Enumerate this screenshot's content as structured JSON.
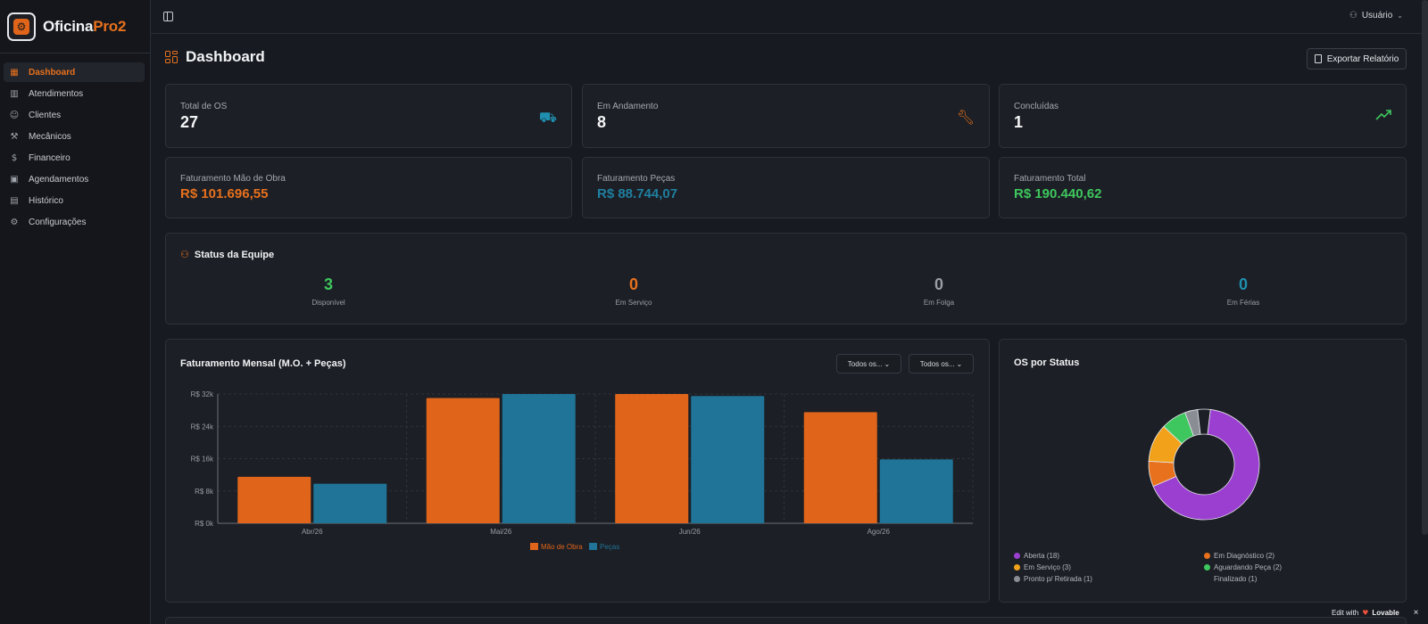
{
  "app": {
    "brand_main": "Oficina",
    "brand_accent": "Pro2"
  },
  "sidebar": {
    "items": [
      {
        "label": "Dashboard",
        "icon": "grid-icon",
        "glyph": "▦",
        "active": true
      },
      {
        "label": "Atendimentos",
        "icon": "book-icon",
        "glyph": "▥"
      },
      {
        "label": "Clientes",
        "icon": "users-icon",
        "glyph": "☺"
      },
      {
        "label": "Mecânicos",
        "icon": "wrench-icon",
        "glyph": "⚒"
      },
      {
        "label": "Financeiro",
        "icon": "dollar-icon",
        "glyph": "$"
      },
      {
        "label": "Agendamentos",
        "icon": "calendar-icon",
        "glyph": "▣"
      },
      {
        "label": "Histórico",
        "icon": "archive-icon",
        "glyph": "▤"
      },
      {
        "label": "Configurações",
        "icon": "gear-icon",
        "glyph": "⚙"
      }
    ]
  },
  "topbar": {
    "user_label": "Usuário"
  },
  "page": {
    "title": "Dashboard",
    "export_label": "Exportar Relatório"
  },
  "stats": [
    {
      "label": "Total de OS",
      "value": "27",
      "icon": "car-icon",
      "color": "#1f8fb0"
    },
    {
      "label": "Em Andamento",
      "value": "8",
      "icon": "wrench-icon",
      "color": "#e8711d"
    },
    {
      "label": "Concluídas",
      "value": "1",
      "icon": "trending-up-icon",
      "color": "#3ec75e"
    }
  ],
  "revenue": [
    {
      "label": "Faturamento Mão de Obra",
      "value": "R$ 101.696,55",
      "color": "#e8711d"
    },
    {
      "label": "Faturamento Peças",
      "value": "R$ 88.744,07",
      "color": "#1f7fa0"
    },
    {
      "label": "Faturamento Total",
      "value": "R$ 190.440,62",
      "color": "#3ec75e"
    }
  ],
  "team": {
    "title": "Status da Equipe",
    "stats": [
      {
        "value": "3",
        "label": "Disponível",
        "color": "#3ec75e"
      },
      {
        "value": "0",
        "label": "Em Serviço",
        "color": "#e8711d"
      },
      {
        "value": "0",
        "label": "Em Folga",
        "color": "#9a9ea6"
      },
      {
        "value": "0",
        "label": "Em Férias",
        "color": "#1f8fb0"
      }
    ]
  },
  "monthly": {
    "title": "Faturamento Mensal (M.O. + Peças)",
    "filter1": "Todos os...",
    "filter2": "Todos os..."
  },
  "status_panel": {
    "title": "OS por Status"
  },
  "chart_data": [
    {
      "type": "bar",
      "title": "Faturamento Mensal (M.O. + Peças)",
      "categories": [
        "Abr/26",
        "Mai/26",
        "Jun/26",
        "Ago/26"
      ],
      "series": [
        {
          "name": "Mão de Obra",
          "color": "#e0651a",
          "values": [
            11500,
            31000,
            32000,
            27500
          ]
        },
        {
          "name": "Peças",
          "color": "#1f7497",
          "values": [
            9800,
            32000,
            31500,
            15800
          ]
        }
      ],
      "ylim": [
        0,
        32000
      ],
      "yticks": [
        "R$ 0k",
        "R$ 8k",
        "R$ 16k",
        "R$ 24k",
        "R$ 32k"
      ],
      "ytick_values": [
        0,
        8000,
        16000,
        24000,
        32000
      ],
      "grid": true,
      "legend": "bottom"
    },
    {
      "type": "pie",
      "title": "OS por Status",
      "labels": [
        "Aberta (18)",
        "Em Diagnóstico (2)",
        "Em Serviço (3)",
        "Aguardando Peça (2)",
        "Pronto p/ Retirada (1)",
        "Finalizado (1)"
      ],
      "values": [
        18,
        2,
        3,
        2,
        1,
        1
      ],
      "colors": [
        "#9a3fd0",
        "#e8711d",
        "#f1a11a",
        "#3ec75e",
        "#8a8d94",
        "#1c1f25"
      ],
      "donut": true,
      "legend": "bottom"
    }
  ],
  "badge": {
    "prefix": "Edit with",
    "brand": "Lovable",
    "close": "×"
  }
}
